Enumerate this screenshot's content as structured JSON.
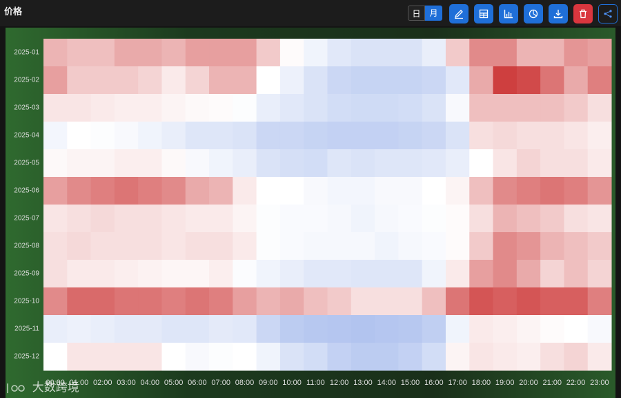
{
  "header": {
    "title": "价格",
    "toggle": [
      "日",
      "月"
    ]
  },
  "watermark": "大数跨境",
  "chart_data": {
    "type": "heatmap",
    "x": [
      "00:00",
      "01:00",
      "02:00",
      "03:00",
      "04:00",
      "05:00",
      "06:00",
      "07:00",
      "08:00",
      "09:00",
      "10:00",
      "11:00",
      "12:00",
      "13:00",
      "14:00",
      "15:00",
      "16:00",
      "17:00",
      "18:00",
      "19:00",
      "20:00",
      "21:00",
      "22:00",
      "23:00"
    ],
    "y": [
      "2025-01",
      "2025-02",
      "2025-03",
      "2025-04",
      "2025-05",
      "2025-06",
      "2025-07",
      "2025-08",
      "2025-09",
      "2025-10",
      "2025-11",
      "2025-12"
    ],
    "vlim": [
      -1,
      1
    ],
    "colors": [
      "#6a8de0",
      "#ffffff",
      "#c92a2a"
    ],
    "values": [
      [
        0.35,
        0.3,
        0.3,
        0.4,
        0.4,
        0.35,
        0.45,
        0.45,
        0.45,
        0.25,
        0.02,
        -0.1,
        -0.2,
        -0.25,
        -0.25,
        -0.25,
        -0.15,
        0.25,
        0.55,
        0.55,
        0.35,
        0.35,
        0.5,
        0.45
      ],
      [
        0.45,
        0.25,
        0.25,
        0.25,
        0.2,
        0.1,
        0.2,
        0.35,
        0.35,
        0,
        -0.12,
        -0.25,
        -0.35,
        -0.38,
        -0.38,
        -0.38,
        -0.35,
        -0.2,
        0.4,
        0.9,
        0.85,
        0.65,
        0.4,
        0.6
      ],
      [
        0.12,
        0.12,
        0.1,
        0.08,
        0.08,
        0.05,
        0.03,
        0.02,
        -0.02,
        -0.15,
        -0.2,
        -0.25,
        -0.3,
        -0.32,
        -0.32,
        -0.3,
        -0.25,
        -0.05,
        0.3,
        0.3,
        0.3,
        0.3,
        0.25,
        0.15
      ],
      [
        -0.08,
        0,
        -0.02,
        -0.05,
        -0.1,
        -0.15,
        -0.22,
        -0.22,
        -0.25,
        -0.35,
        -0.35,
        -0.38,
        -0.4,
        -0.4,
        -0.4,
        -0.38,
        -0.35,
        -0.25,
        0.15,
        0.18,
        0.15,
        0.15,
        0.12,
        0.08
      ],
      [
        0.03,
        0.05,
        0.05,
        0.08,
        0.08,
        0.03,
        -0.05,
        -0.1,
        -0.15,
        -0.25,
        -0.28,
        -0.3,
        -0.22,
        -0.25,
        -0.22,
        -0.22,
        -0.2,
        -0.15,
        0,
        0.12,
        0.2,
        0.15,
        0.15,
        0.1
      ],
      [
        0.45,
        0.55,
        0.6,
        0.65,
        0.6,
        0.55,
        0.4,
        0.35,
        0.1,
        0,
        0,
        -0.05,
        -0.08,
        -0.08,
        -0.05,
        -0.05,
        0,
        0.05,
        0.3,
        0.55,
        0.6,
        0.65,
        0.6,
        0.5
      ],
      [
        0.12,
        0.15,
        0.18,
        0.15,
        0.15,
        0.12,
        0.1,
        0.1,
        0.05,
        -0.02,
        -0.04,
        -0.04,
        -0.06,
        -0.1,
        -0.06,
        -0.04,
        -0.02,
        0.02,
        0.15,
        0.35,
        0.3,
        0.25,
        0.15,
        0.12
      ],
      [
        0.15,
        0.18,
        0.15,
        0.15,
        0.15,
        0.12,
        0.15,
        0.15,
        0.1,
        -0.02,
        -0.04,
        -0.06,
        -0.06,
        -0.06,
        -0.1,
        -0.06,
        -0.04,
        0.02,
        0.25,
        0.55,
        0.5,
        0.35,
        0.3,
        0.25
      ],
      [
        0.15,
        0.1,
        0.1,
        0.08,
        0.06,
        0.04,
        0.04,
        0.08,
        -0.03,
        -0.1,
        -0.15,
        -0.2,
        -0.2,
        -0.22,
        -0.22,
        -0.22,
        -0.1,
        0.1,
        0.45,
        0.55,
        0.4,
        0.2,
        0.3,
        0.2
      ],
      [
        0.55,
        0.7,
        0.7,
        0.65,
        0.65,
        0.6,
        0.65,
        0.6,
        0.45,
        0.35,
        0.4,
        0.3,
        0.25,
        0.15,
        0.15,
        0.15,
        0.3,
        0.65,
        0.8,
        0.75,
        0.8,
        0.75,
        0.75,
        0.6
      ],
      [
        -0.15,
        -0.12,
        -0.15,
        -0.18,
        -0.18,
        -0.22,
        -0.22,
        -0.18,
        -0.2,
        -0.35,
        -0.45,
        -0.48,
        -0.5,
        -0.52,
        -0.5,
        -0.48,
        -0.42,
        -0.1,
        0.1,
        0.08,
        0.05,
        0.02,
        0,
        -0.05
      ],
      [
        0,
        0.12,
        0.12,
        0.12,
        0.12,
        0,
        -0.05,
        -0.02,
        0,
        -0.1,
        -0.25,
        -0.3,
        -0.4,
        -0.45,
        -0.45,
        -0.4,
        -0.3,
        0.05,
        0.12,
        0.1,
        0.08,
        0.15,
        0.2,
        0.1
      ]
    ]
  }
}
